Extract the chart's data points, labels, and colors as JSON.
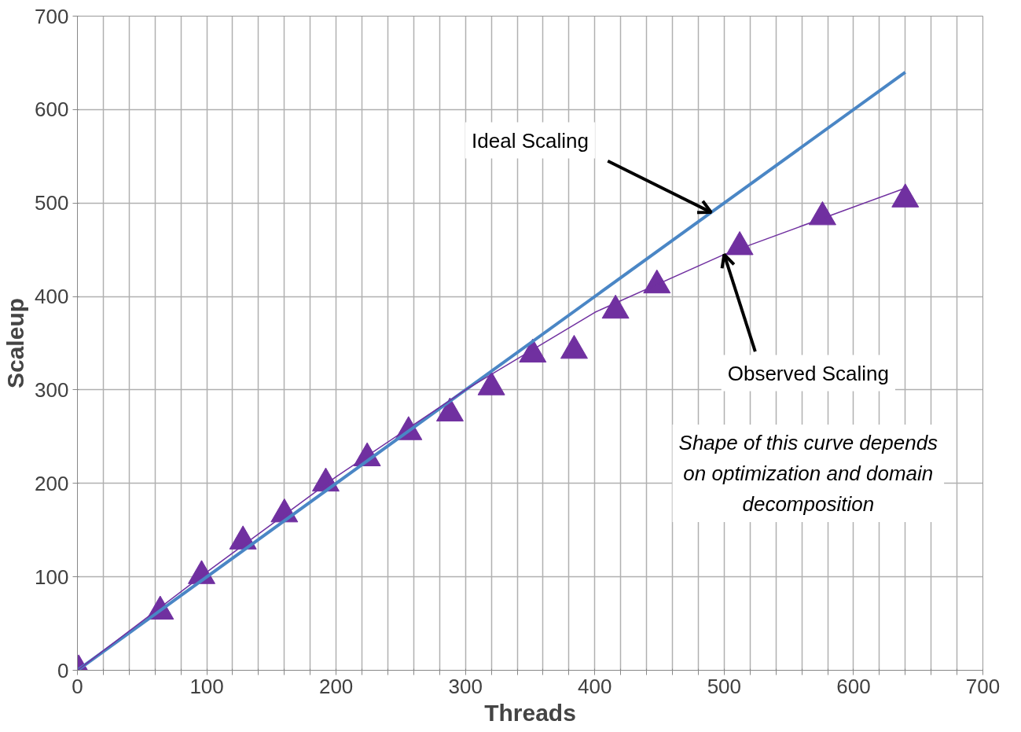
{
  "chart_data": {
    "type": "line",
    "xlabel": "Threads",
    "ylabel": "Scaleup",
    "xlim": [
      0,
      700
    ],
    "ylim": [
      0,
      700
    ],
    "xticks": [
      0,
      {
        "value": 20,
        "label": null
      },
      {
        "value": 40,
        "label": null
      },
      {
        "value": 60,
        "label": null
      },
      {
        "value": 80,
        "label": null
      },
      100,
      {
        "value": 120,
        "label": null
      },
      {
        "value": 140,
        "label": null
      },
      {
        "value": 160,
        "label": null
      },
      {
        "value": 180,
        "label": null
      },
      200,
      {
        "value": 220,
        "label": null
      },
      {
        "value": 240,
        "label": null
      },
      {
        "value": 260,
        "label": null
      },
      {
        "value": 280,
        "label": null
      },
      300,
      {
        "value": 320,
        "label": null
      },
      {
        "value": 340,
        "label": null
      },
      {
        "value": 360,
        "label": null
      },
      {
        "value": 380,
        "label": null
      },
      400,
      {
        "value": 420,
        "label": null
      },
      {
        "value": 440,
        "label": null
      },
      {
        "value": 460,
        "label": null
      },
      {
        "value": 480,
        "label": null
      },
      500,
      {
        "value": 520,
        "label": null
      },
      {
        "value": 540,
        "label": null
      },
      {
        "value": 560,
        "label": null
      },
      {
        "value": 580,
        "label": null
      },
      600,
      {
        "value": 620,
        "label": null
      },
      {
        "value": 640,
        "label": null
      },
      {
        "value": 660,
        "label": null
      },
      {
        "value": 680,
        "label": null
      },
      700
    ],
    "yticks": [
      0,
      100,
      200,
      300,
      400,
      500,
      600,
      700
    ],
    "grid": true,
    "series": [
      {
        "color": "#4a86c5",
        "marker": "none",
        "x": [
          1,
          640
        ],
        "values": [
          1,
          640
        ]
      },
      {
        "color": "#7030a0",
        "marker": "none",
        "x": [
          1,
          100,
          200,
          300,
          400,
          500,
          640
        ],
        "values": [
          1,
          105,
          207,
          300,
          383,
          445,
          516
        ]
      },
      {
        "type": "scatter",
        "color": "#7030a0",
        "marker": "triangle",
        "x": [
          1,
          64,
          96,
          128,
          160,
          192,
          224,
          256,
          288,
          320,
          352,
          384,
          416,
          448,
          512,
          576,
          640
        ],
        "values": [
          0,
          63,
          101,
          138,
          167,
          200,
          227,
          255,
          275,
          303,
          338,
          342,
          385,
          412,
          453,
          485,
          504
        ]
      }
    ],
    "annotations": [
      {
        "text": "Ideal Scaling",
        "x": 490,
        "y": 490
      },
      {
        "text": "Observed Scaling",
        "x": 500,
        "y": 445
      },
      "Shape of this curve depends on optimization and domain decomposition"
    ]
  }
}
